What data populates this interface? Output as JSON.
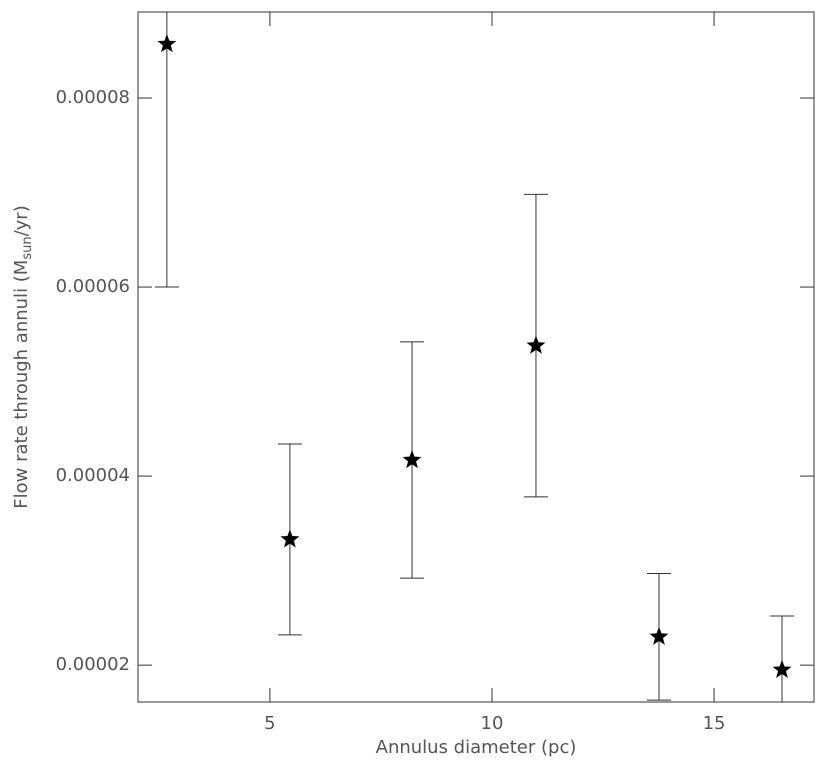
{
  "chart_data": {
    "type": "scatter",
    "x_label": "Annulus diameter (pc)",
    "y_label_parts": [
      "Flow rate through annuli (M",
      "sun",
      "/yr)"
    ],
    "x": [
      2.68,
      5.45,
      8.2,
      10.99,
      13.76,
      16.53
    ],
    "series": [
      {
        "color": "#000000",
        "values": [
          8.57e-05,
          3.33e-05,
          4.17e-05,
          5.38e-05,
          2.3e-05,
          1.95e-05
        ],
        "errors": [
          2.57e-05,
          1.01e-05,
          1.25e-05,
          1.6e-05,
          6.7e-06,
          5.7e-06
        ]
      }
    ],
    "xlim": [
      2.03,
      17.25
    ],
    "ylim": [
      1.61e-05,
      8.91e-05
    ],
    "xticks": [
      5,
      10,
      15
    ],
    "yticks": [
      {
        "value": 2e-05,
        "label": "0.00002"
      },
      {
        "value": 4e-05,
        "label": "0.00004"
      },
      {
        "value": 6e-05,
        "label": "0.00006"
      },
      {
        "value": 8e-05,
        "label": "0.00008"
      }
    ]
  }
}
